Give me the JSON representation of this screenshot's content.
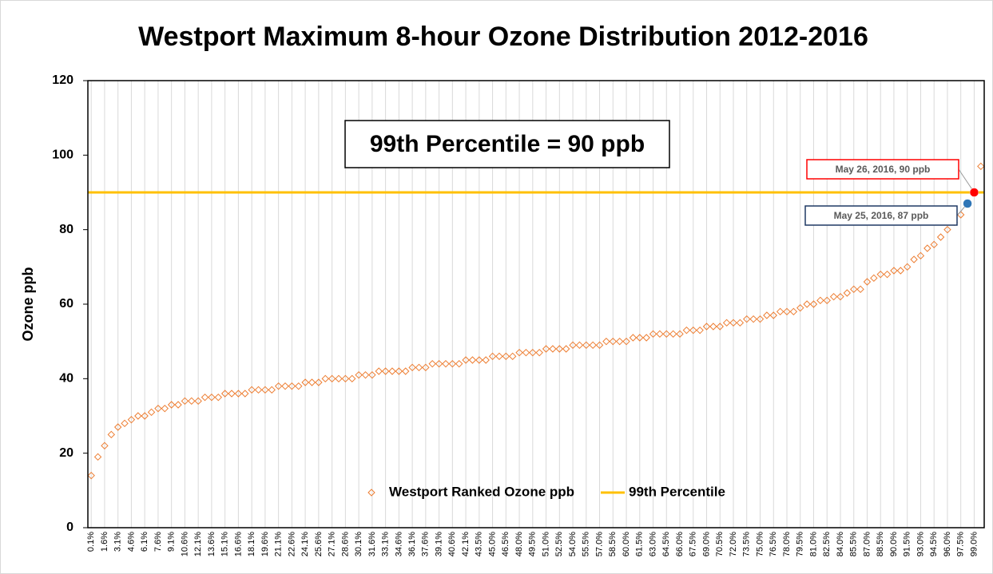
{
  "chart_data": {
    "type": "scatter",
    "title": "Westport Maximum 8-hour Ozone Distribution 2012-2016",
    "y_label": "Ozone ppb",
    "callout": "99th Percentile = 90 ppb",
    "ylim": [
      0,
      120
    ],
    "yticks": [
      0,
      20,
      40,
      60,
      80,
      100,
      120
    ],
    "grid": true,
    "legend": "bottom",
    "categories": [
      "0.1%",
      null,
      "1.6%",
      null,
      "3.1%",
      null,
      "4.6%",
      null,
      "6.1%",
      null,
      "7.6%",
      null,
      "9.1%",
      null,
      "10.6%",
      null,
      "12.1%",
      null,
      "13.6%",
      null,
      "15.1%",
      null,
      "16.6%",
      null,
      "18.1%",
      null,
      "19.6%",
      null,
      "21.1%",
      null,
      "22.6%",
      null,
      "24.1%",
      null,
      "25.6%",
      null,
      "27.1%",
      null,
      "28.6%",
      null,
      "30.1%",
      null,
      "31.6%",
      null,
      "33.1%",
      null,
      "34.6%",
      null,
      "36.1%",
      null,
      "37.6%",
      null,
      "39.1%",
      null,
      "40.6%",
      null,
      "42.1%",
      null,
      "43.5%",
      null,
      "45.0%",
      null,
      "46.5%",
      null,
      "48.0%",
      null,
      "49.5%",
      null,
      "51.0%",
      null,
      "52.5%",
      null,
      "54.0%",
      null,
      "55.5%",
      null,
      "57.0%",
      null,
      "58.5%",
      null,
      "60.0%",
      null,
      "61.5%",
      null,
      "63.0%",
      null,
      "64.5%",
      null,
      "66.0%",
      null,
      "67.5%",
      null,
      "69.0%",
      null,
      "70.5%",
      null,
      "72.0%",
      null,
      "73.5%",
      null,
      "75.0%",
      null,
      "76.5%",
      null,
      "78.0%",
      null,
      "79.5%",
      null,
      "81.0%",
      null,
      "82.5%",
      null,
      "84.0%",
      null,
      "85.5%",
      null,
      "87.0%",
      null,
      "88.5%",
      null,
      "90.0%",
      null,
      "91.5%",
      null,
      "93.0%",
      null,
      "94.5%",
      null,
      "96.0%",
      null,
      "97.5%",
      null,
      "99.0%",
      null
    ],
    "series": [
      {
        "name": "Westport Ranked Ozone ppb",
        "color": "#ed7d31",
        "values": [
          14,
          19,
          22,
          25,
          27,
          28,
          29,
          30,
          30,
          31,
          32,
          32,
          33,
          33,
          34,
          34,
          34,
          35,
          35,
          35,
          36,
          36,
          36,
          36,
          37,
          37,
          37,
          37,
          38,
          38,
          38,
          38,
          39,
          39,
          39,
          40,
          40,
          40,
          40,
          40,
          41,
          41,
          41,
          42,
          42,
          42,
          42,
          42,
          43,
          43,
          43,
          44,
          44,
          44,
          44,
          44,
          45,
          45,
          45,
          45,
          46,
          46,
          46,
          46,
          47,
          47,
          47,
          47,
          48,
          48,
          48,
          48,
          49,
          49,
          49,
          49,
          49,
          50,
          50,
          50,
          50,
          51,
          51,
          51,
          52,
          52,
          52,
          52,
          52,
          53,
          53,
          53,
          54,
          54,
          54,
          55,
          55,
          55,
          56,
          56,
          56,
          57,
          57,
          58,
          58,
          58,
          59,
          60,
          60,
          61,
          61,
          62,
          62,
          63,
          64,
          64,
          66,
          67,
          68,
          68,
          69,
          69,
          70,
          72,
          73,
          75,
          76,
          78,
          80,
          82,
          84,
          87,
          90,
          97
        ]
      }
    ],
    "reference_line": {
      "name": "99th Percentile",
      "value": 90,
      "color": "#ffc000"
    },
    "annotations": [
      {
        "text": "May 26, 2016, 90 ppb",
        "point": 132,
        "color": "#ff0000"
      },
      {
        "text": "May 25, 2016, 87 ppb",
        "point": 131,
        "color": "#1f3864",
        "marker": "#2e75b6"
      }
    ]
  }
}
